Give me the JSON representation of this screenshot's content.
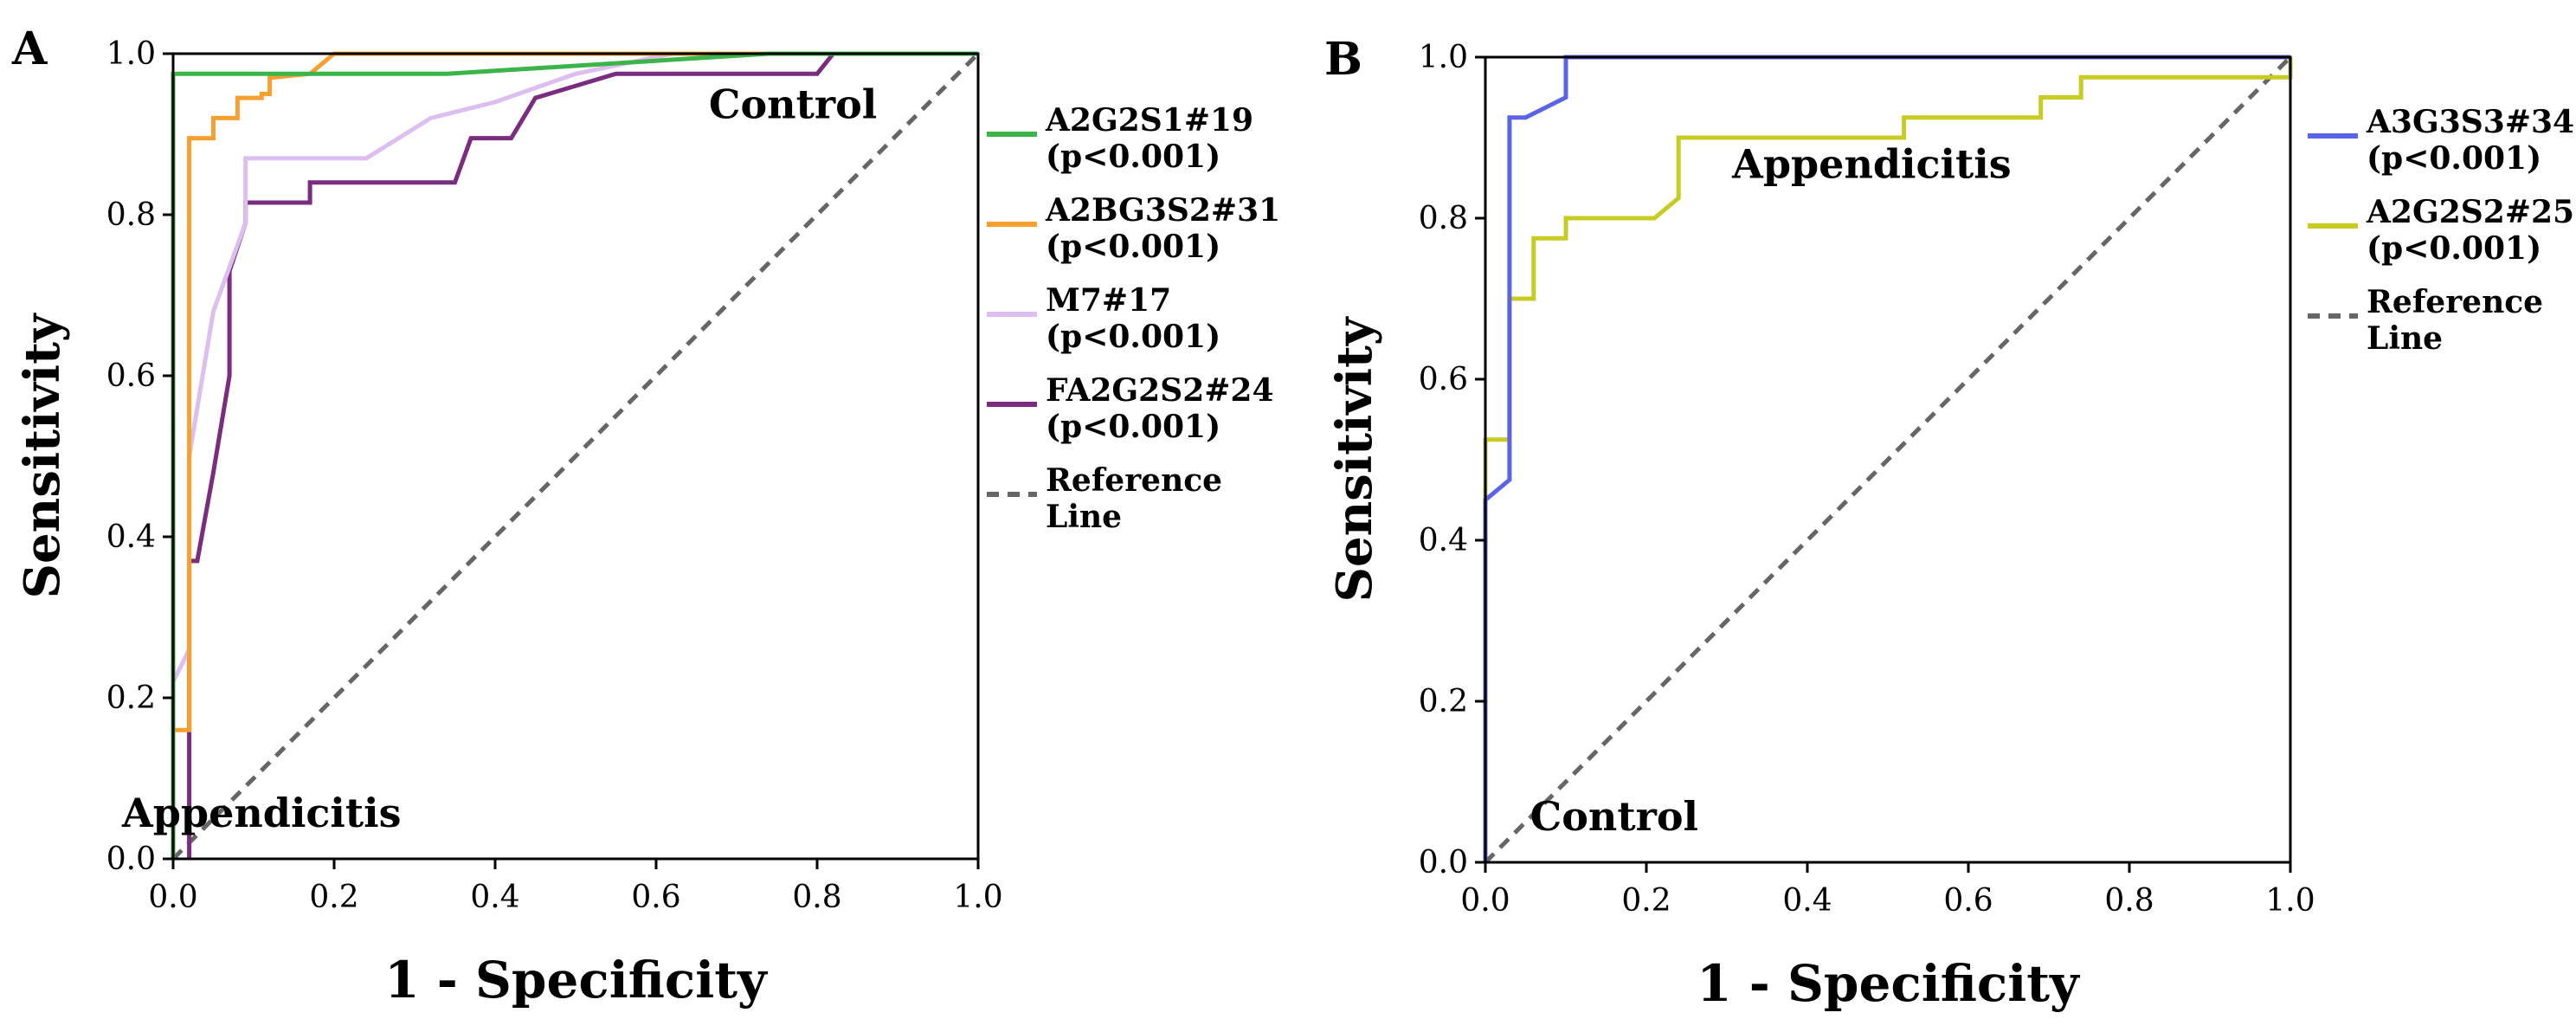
{
  "chart_data": [
    {
      "type": "line",
      "panel_label": "A",
      "xlabel": "1 - Specificity",
      "ylabel": "Sensitivity",
      "xlim": [
        0,
        1
      ],
      "ylim": [
        0,
        1
      ],
      "xticks": [
        "0.0",
        "0.2",
        "0.4",
        "0.6",
        "0.8",
        "1.0"
      ],
      "yticks": [
        "0.0",
        "0.2",
        "0.4",
        "0.6",
        "0.8",
        "1.0"
      ],
      "annotations": [
        {
          "text": "Control",
          "x": 0.77,
          "y": 0.92
        },
        {
          "text": "Appendicitis",
          "x": 0.11,
          "y": 0.04
        }
      ],
      "legend_position": "right",
      "series": [
        {
          "name": "A2G2S1#19",
          "pvalue": "(p<0.001)",
          "color": "#3bb54a",
          "x": [
            0,
            0,
            0.34,
            0.74,
            1.0
          ],
          "y": [
            0,
            0.975,
            0.975,
            1.0,
            1.0
          ]
        },
        {
          "name": "A2BG3S2#31",
          "pvalue": "(p<0.001)",
          "color": "#f7a030",
          "x": [
            0,
            0.02,
            0.02,
            0.02,
            0.05,
            0.05,
            0.08,
            0.08,
            0.11,
            0.11,
            0.12,
            0.12,
            0.17,
            0.2,
            1.0
          ],
          "y": [
            0.16,
            0.16,
            0.5,
            0.895,
            0.895,
            0.92,
            0.92,
            0.945,
            0.945,
            0.95,
            0.95,
            0.97,
            0.975,
            1.0,
            1.0
          ],
          "extra_start": [
            [
              0,
              0.16
            ]
          ]
        },
        {
          "name": "M7#17",
          "pvalue": "(p<0.001)",
          "color": "#dcbff0",
          "x": [
            0,
            0.02,
            0.02,
            0.05,
            0.09,
            0.09,
            0.24,
            0.32,
            0.4,
            0.5,
            0.62,
            1.0
          ],
          "y": [
            0.22,
            0.26,
            0.5,
            0.68,
            0.79,
            0.87,
            0.87,
            0.92,
            0.94,
            0.975,
            1.0,
            1.0
          ]
        },
        {
          "name": "FA2G2S2#24",
          "pvalue": "(p<0.001)",
          "color": "#7a2c7e",
          "x": [
            0.02,
            0.02,
            0.03,
            0.05,
            0.07,
            0.07,
            0.09,
            0.09,
            0.17,
            0.17,
            0.35,
            0.37,
            0.42,
            0.45,
            0.55,
            0.8,
            0.82,
            1.0
          ],
          "y": [
            0,
            0.37,
            0.37,
            0.48,
            0.6,
            0.73,
            0.79,
            0.815,
            0.815,
            0.84,
            0.84,
            0.895,
            0.895,
            0.945,
            0.975,
            0.975,
            1.0,
            1.0
          ]
        }
      ],
      "reference_line": {
        "name": "Reference Line",
        "color": "#666666"
      }
    },
    {
      "type": "line",
      "panel_label": "B",
      "xlabel": "1 - Specificity",
      "ylabel": "Sensitivity",
      "xlim": [
        0,
        1
      ],
      "ylim": [
        0,
        1
      ],
      "xticks": [
        "0.0",
        "0.2",
        "0.4",
        "0.6",
        "0.8",
        "1.0"
      ],
      "yticks": [
        "0.0",
        "0.2",
        "0.4",
        "0.6",
        "0.8",
        "1.0"
      ],
      "annotations": [
        {
          "text": "Appendicitis",
          "x": 0.48,
          "y": 0.85
        },
        {
          "text": "Control",
          "x": 0.16,
          "y": 0.04
        }
      ],
      "legend_position": "right",
      "series": [
        {
          "name": "A3G3S3#34",
          "pvalue": "(p<0.001)",
          "color": "#5b63e6",
          "x": [
            0,
            0,
            0.03,
            0.03,
            0.05,
            0.1,
            0.1,
            1.0
          ],
          "y": [
            0,
            0.45,
            0.475,
            0.925,
            0.925,
            0.95,
            1.0,
            1.0
          ]
        },
        {
          "name": "A2G2S2#25",
          "pvalue": "(p<0.001)",
          "color": "#c8cc22",
          "x": [
            0,
            0,
            0.03,
            0.03,
            0.06,
            0.06,
            0.1,
            0.1,
            0.21,
            0.24,
            0.24,
            0.52,
            0.52,
            0.69,
            0.69,
            0.74,
            0.74,
            1.0,
            1.0
          ],
          "y": [
            0,
            0.525,
            0.525,
            0.7,
            0.7,
            0.775,
            0.775,
            0.8,
            0.8,
            0.825,
            0.9,
            0.9,
            0.925,
            0.925,
            0.95,
            0.95,
            0.975,
            0.975,
            1.0
          ]
        }
      ],
      "reference_line": {
        "name": "Reference Line",
        "color": "#666666"
      }
    }
  ]
}
